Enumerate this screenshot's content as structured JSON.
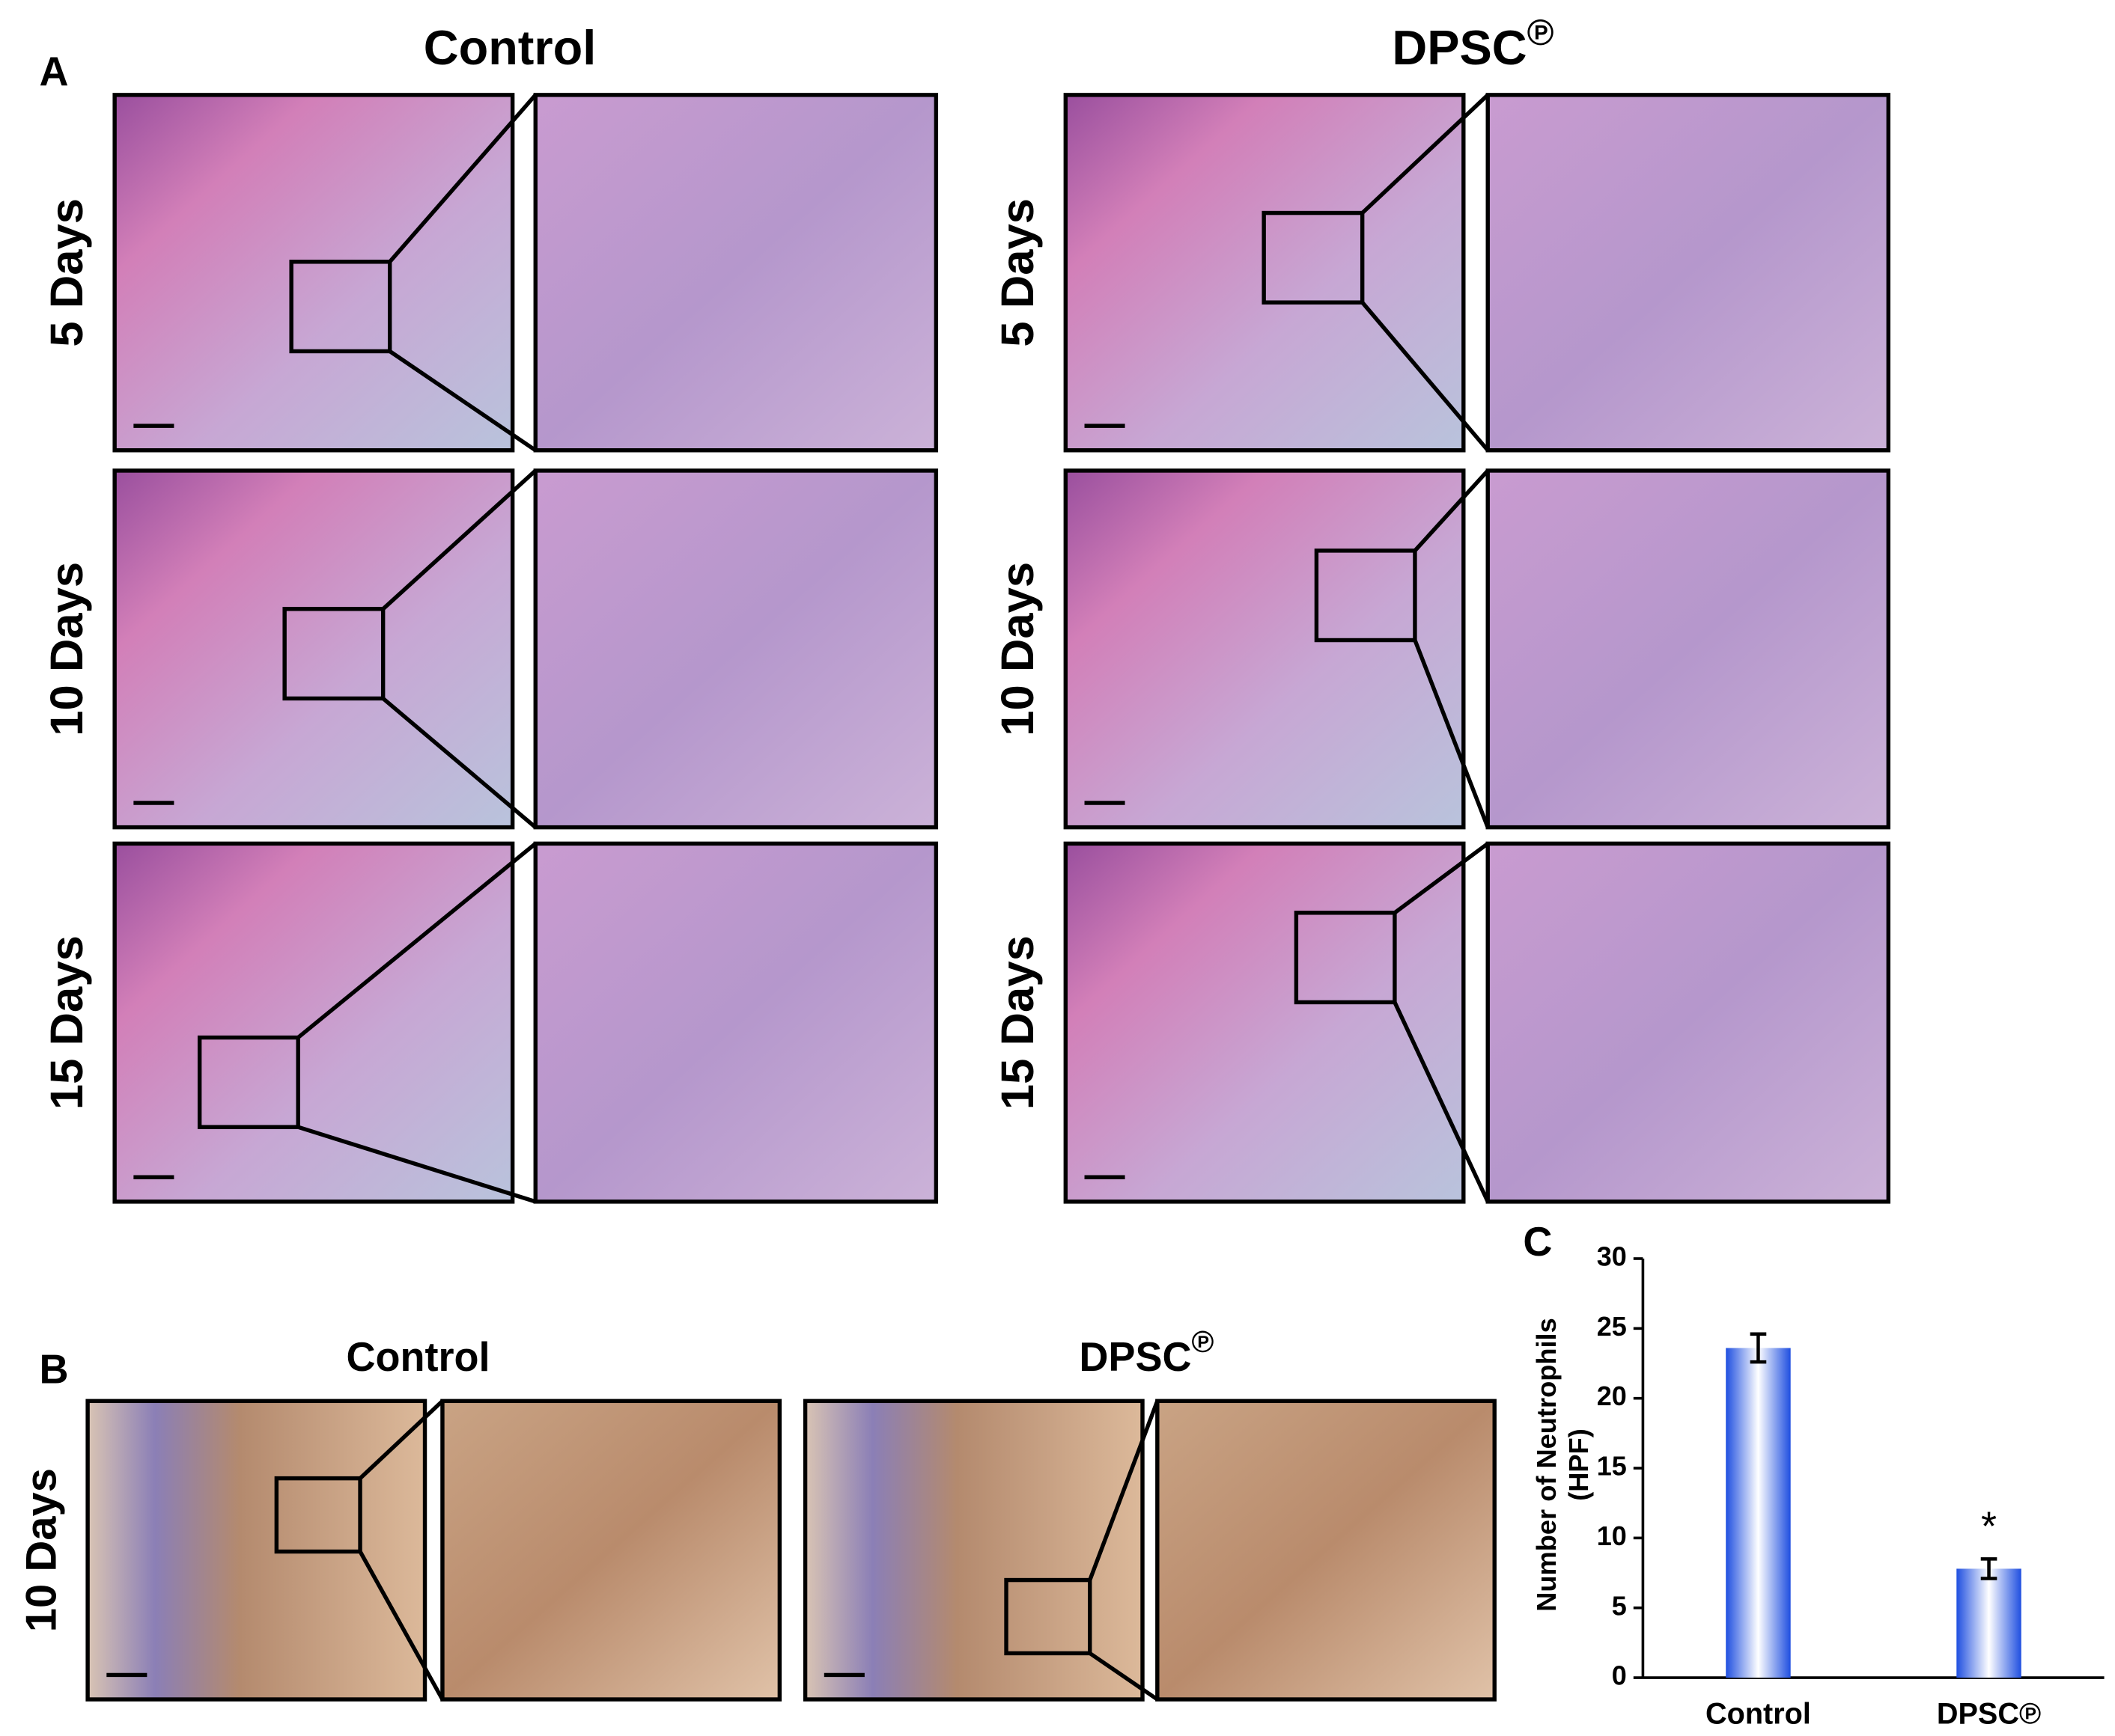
{
  "panel_a": {
    "label": "A",
    "groups": [
      {
        "name": "Control"
      },
      {
        "name": "DPSC",
        "mark": "℗"
      }
    ],
    "rows": [
      "5 Days",
      "10 Days",
      "15 Days"
    ]
  },
  "panel_b": {
    "label": "B",
    "rows": [
      "10 Days"
    ],
    "groups": [
      {
        "name": "Control"
      },
      {
        "name": "DPSC",
        "mark": "℗"
      }
    ]
  },
  "chart_data": {
    "type": "bar",
    "label": "C",
    "y_label": [
      "Number of Neutrophils",
      "(HPF)"
    ],
    "categories": [
      "Control",
      "DPSC℗"
    ],
    "values": [
      23.6,
      7.8
    ],
    "errors": [
      1.0,
      0.7
    ],
    "significance": [
      null,
      "*"
    ],
    "color": "#1f4fe0",
    "ylim": [
      0,
      30
    ],
    "yticks": [
      0,
      5,
      10,
      15,
      20,
      25,
      30
    ]
  }
}
